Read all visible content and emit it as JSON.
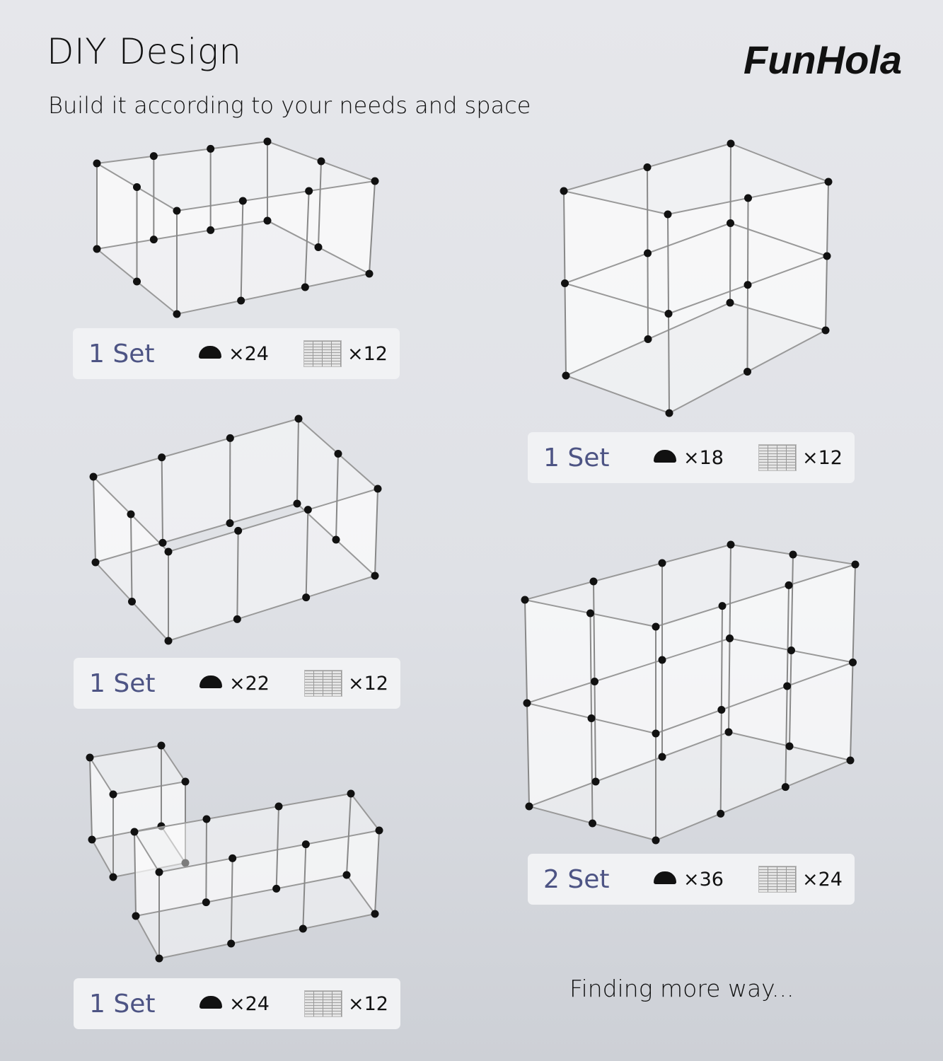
{
  "header": {
    "title": "DIY Design",
    "subtitle": "Build it according to your needs and space",
    "brand": "FunHola"
  },
  "icons": {
    "connector": "connector-icon",
    "panel": "grid-panel-icon"
  },
  "configurations": [
    {
      "sets": "1 Set",
      "connectors": "×24",
      "panels": "×12"
    },
    {
      "sets": "1 Set",
      "connectors": "×18",
      "panels": "×12"
    },
    {
      "sets": "1 Set",
      "connectors": "×22",
      "panels": "×12"
    },
    {
      "sets": "2 Set",
      "connectors": "×36",
      "panels": "×24"
    },
    {
      "sets": "1 Set",
      "connectors": "×24",
      "panels": "×12"
    }
  ],
  "footer_note": "Finding more way...",
  "colors": {
    "set_text": "#4d5484",
    "card_bg": "#f1f2f4",
    "background": "#e2e4e8"
  }
}
